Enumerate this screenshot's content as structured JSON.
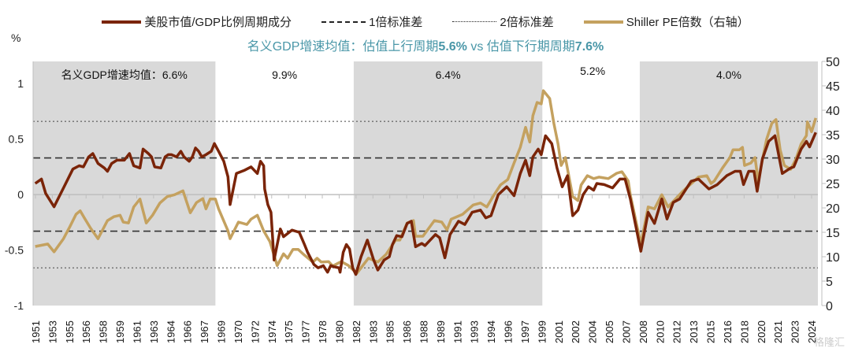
{
  "legend": {
    "series1": "美股市值/GDP比例周期成分",
    "sd1": "1倍标准差",
    "sd2": "2倍标准差",
    "series2": "Shiller PE倍数（右轴）"
  },
  "subtitle": {
    "part1": "名义GDP增速均值：估值上行周期",
    "val1": "5.6%",
    "part2": " vs 估值下行期周期",
    "val2": "7.6%"
  },
  "unit_label": "%",
  "watermark": "格隆汇",
  "colors": {
    "series1": "#7a2408",
    "series2": "#c4a15f",
    "shade": "#d9d9d9",
    "subtitle": "#4a97a8"
  },
  "chart_data": {
    "type": "line",
    "xlim": [
      1951,
      2025.9
    ],
    "ylim_left": [
      -1,
      1.2
    ],
    "ylim_right": [
      0,
      50
    ],
    "yticks_left": [
      "-1",
      "-0.5",
      "0",
      "0.5",
      "1"
    ],
    "yticks_right": [
      "0",
      "5",
      "10",
      "15",
      "20",
      "25",
      "30",
      "35",
      "40",
      "45",
      "50"
    ],
    "xtick_labels": [
      "1951",
      "1953",
      "1955",
      "1956",
      "1958",
      "1959",
      "1961",
      "1963",
      "1964",
      "1966",
      "1967",
      "1969",
      "1970",
      "1972",
      "1974",
      "1975",
      "1977",
      "1978",
      "1980",
      "1982",
      "1983",
      "1985",
      "1986",
      "1988",
      "1989",
      "1991",
      "1993",
      "1994",
      "1996",
      "1997",
      "1999",
      "2001",
      "2002",
      "2004",
      "2005",
      "2007",
      "2008",
      "2010",
      "2012",
      "2013",
      "2015",
      "2016",
      "2018",
      "2020",
      "2021",
      "2023",
      "2024"
    ],
    "reference_lines": [
      {
        "name": "1倍标准差",
        "values": [
          0.33,
          -0.33
        ],
        "style": "dashed"
      },
      {
        "name": "2倍标准差",
        "values": [
          0.66,
          -0.66
        ],
        "style": "dotted"
      }
    ],
    "shaded_periods": [
      {
        "start": 1951,
        "end": 1968.4,
        "label": "名义GDP增速均值：6.6%"
      },
      {
        "start": 1981.6,
        "end": 1999.6,
        "label": "6.4%"
      },
      {
        "start": 2008.9,
        "end": 2025.9,
        "label": "4.0%"
      }
    ],
    "unshaded_labels": [
      {
        "center": 1975.0,
        "label": "9.9%"
      },
      {
        "center": 2004.4,
        "label": "5.2%"
      }
    ],
    "series": [
      {
        "name": "美股市值/GDP比例周期成分",
        "axis": "left",
        "points": [
          [
            1951.2,
            0.1
          ],
          [
            1951.8,
            0.14
          ],
          [
            1952.2,
            0.01
          ],
          [
            1953.0,
            -0.11
          ],
          [
            1953.9,
            0.06
          ],
          [
            1954.8,
            0.23
          ],
          [
            1955.4,
            0.26
          ],
          [
            1955.8,
            0.25
          ],
          [
            1956.3,
            0.34
          ],
          [
            1956.7,
            0.37
          ],
          [
            1957.2,
            0.28
          ],
          [
            1957.8,
            0.24
          ],
          [
            1958.1,
            0.21
          ],
          [
            1958.5,
            0.28
          ],
          [
            1959.0,
            0.31
          ],
          [
            1959.7,
            0.31
          ],
          [
            1960.2,
            0.37
          ],
          [
            1960.6,
            0.26
          ],
          [
            1961.2,
            0.24
          ],
          [
            1961.5,
            0.41
          ],
          [
            1962.0,
            0.37
          ],
          [
            1962.3,
            0.34
          ],
          [
            1962.6,
            0.25
          ],
          [
            1963.2,
            0.24
          ],
          [
            1963.6,
            0.34
          ],
          [
            1963.9,
            0.36
          ],
          [
            1964.2,
            0.36
          ],
          [
            1964.7,
            0.34
          ],
          [
            1965.1,
            0.39
          ],
          [
            1965.4,
            0.34
          ],
          [
            1965.9,
            0.3
          ],
          [
            1966.2,
            0.34
          ],
          [
            1966.5,
            0.42
          ],
          [
            1966.8,
            0.39
          ],
          [
            1967.1,
            0.34
          ],
          [
            1967.5,
            0.36
          ],
          [
            1968.0,
            0.39
          ],
          [
            1968.3,
            0.46
          ],
          [
            1968.7,
            0.39
          ],
          [
            1969.2,
            0.3
          ],
          [
            1969.6,
            0.16
          ],
          [
            1969.8,
            -0.09
          ],
          [
            1970.4,
            0.19
          ],
          [
            1971.2,
            0.22
          ],
          [
            1971.8,
            0.25
          ],
          [
            1972.4,
            0.19
          ],
          [
            1972.7,
            0.3
          ],
          [
            1973.0,
            0.26
          ],
          [
            1973.1,
            0.05
          ],
          [
            1973.4,
            -0.09
          ],
          [
            1973.7,
            -0.16
          ],
          [
            1974.0,
            -0.59
          ],
          [
            1974.3,
            -0.45
          ],
          [
            1974.6,
            -0.31
          ],
          [
            1974.9,
            -0.38
          ],
          [
            1975.7,
            -0.32
          ],
          [
            1976.4,
            -0.34
          ],
          [
            1976.9,
            -0.45
          ],
          [
            1977.2,
            -0.52
          ],
          [
            1977.8,
            -0.63
          ],
          [
            1978.2,
            -0.66
          ],
          [
            1978.7,
            -0.64
          ],
          [
            1979.1,
            -0.7
          ],
          [
            1979.4,
            -0.64
          ],
          [
            1979.7,
            -0.65
          ],
          [
            1980.2,
            -0.66
          ],
          [
            1980.3,
            -0.7
          ],
          [
            1980.6,
            -0.52
          ],
          [
            1980.9,
            -0.45
          ],
          [
            1981.2,
            -0.49
          ],
          [
            1981.5,
            -0.66
          ],
          [
            1981.8,
            -0.72
          ],
          [
            1982.3,
            -0.56
          ],
          [
            1982.9,
            -0.41
          ],
          [
            1983.5,
            -0.59
          ],
          [
            1983.9,
            -0.68
          ],
          [
            1984.5,
            -0.59
          ],
          [
            1985.0,
            -0.56
          ],
          [
            1985.3,
            -0.45
          ],
          [
            1985.7,
            -0.37
          ],
          [
            1986.2,
            -0.38
          ],
          [
            1986.7,
            -0.26
          ],
          [
            1987.1,
            -0.24
          ],
          [
            1987.5,
            -0.47
          ],
          [
            1988.1,
            -0.44
          ],
          [
            1988.4,
            -0.46
          ],
          [
            1989.4,
            -0.36
          ],
          [
            1989.8,
            -0.39
          ],
          [
            1990.3,
            -0.57
          ],
          [
            1990.8,
            -0.36
          ],
          [
            1991.6,
            -0.24
          ],
          [
            1992.2,
            -0.27
          ],
          [
            1992.9,
            -0.16
          ],
          [
            1993.7,
            -0.14
          ],
          [
            1994.2,
            -0.21
          ],
          [
            1994.7,
            -0.19
          ],
          [
            1995.4,
            0.0
          ],
          [
            1996.2,
            0.07
          ],
          [
            1996.9,
            -0.01
          ],
          [
            1997.5,
            0.19
          ],
          [
            1998.0,
            0.31
          ],
          [
            1998.4,
            0.17
          ],
          [
            1998.7,
            0.34
          ],
          [
            1999.2,
            0.41
          ],
          [
            1999.5,
            0.36
          ],
          [
            1999.9,
            0.53
          ],
          [
            2000.5,
            0.46
          ],
          [
            2001.0,
            0.24
          ],
          [
            2001.5,
            0.07
          ],
          [
            2002.0,
            0.17
          ],
          [
            2002.5,
            -0.19
          ],
          [
            2003.0,
            -0.14
          ],
          [
            2003.5,
            0.0
          ],
          [
            2004.0,
            0.07
          ],
          [
            2004.5,
            0.04
          ],
          [
            2004.8,
            0.1
          ],
          [
            2005.5,
            0.09
          ],
          [
            2006.3,
            0.06
          ],
          [
            2007.0,
            0.14
          ],
          [
            2007.5,
            0.14
          ],
          [
            2008.0,
            -0.04
          ],
          [
            2009.0,
            -0.51
          ],
          [
            2009.7,
            -0.16
          ],
          [
            2010.3,
            -0.26
          ],
          [
            2011.0,
            -0.04
          ],
          [
            2011.5,
            -0.22
          ],
          [
            2012.1,
            -0.07
          ],
          [
            2012.7,
            -0.04
          ],
          [
            2013.8,
            0.12
          ],
          [
            2014.5,
            0.14
          ],
          [
            2015.5,
            0.05
          ],
          [
            2016.3,
            0.09
          ],
          [
            2017.2,
            0.17
          ],
          [
            2018.0,
            0.21
          ],
          [
            2018.5,
            0.21
          ],
          [
            2018.8,
            0.09
          ],
          [
            2019.3,
            0.21
          ],
          [
            2019.8,
            0.21
          ],
          [
            2020.1,
            0.03
          ],
          [
            2020.6,
            0.32
          ],
          [
            2021.2,
            0.48
          ],
          [
            2021.8,
            0.53
          ],
          [
            2022.5,
            0.19
          ],
          [
            2023.3,
            0.24
          ],
          [
            2023.6,
            0.25
          ],
          [
            2024.3,
            0.41
          ],
          [
            2024.8,
            0.48
          ],
          [
            2025.1,
            0.43
          ],
          [
            2025.7,
            0.56
          ]
        ]
      },
      {
        "name": "Shiller PE倍数（右轴）",
        "axis": "right",
        "points": [
          [
            1951.2,
            12.1
          ],
          [
            1952.4,
            12.6
          ],
          [
            1953.0,
            11.0
          ],
          [
            1953.9,
            13.7
          ],
          [
            1954.5,
            16.1
          ],
          [
            1955.1,
            18.7
          ],
          [
            1955.5,
            19.4
          ],
          [
            1955.9,
            17.9
          ],
          [
            1956.5,
            15.8
          ],
          [
            1957.2,
            13.7
          ],
          [
            1958.1,
            17.4
          ],
          [
            1958.7,
            18.2
          ],
          [
            1959.3,
            18.5
          ],
          [
            1959.6,
            17.1
          ],
          [
            1960.1,
            16.9
          ],
          [
            1960.6,
            20.2
          ],
          [
            1961.2,
            21.8
          ],
          [
            1961.8,
            16.9
          ],
          [
            1962.4,
            18.5
          ],
          [
            1963.1,
            21.0
          ],
          [
            1963.8,
            22.3
          ],
          [
            1964.5,
            22.7
          ],
          [
            1965.3,
            23.5
          ],
          [
            1966.0,
            19.0
          ],
          [
            1966.6,
            21.1
          ],
          [
            1967.2,
            21.9
          ],
          [
            1967.5,
            19.8
          ],
          [
            1967.9,
            21.8
          ],
          [
            1968.4,
            21.8
          ],
          [
            1968.7,
            19.8
          ],
          [
            1969.6,
            15.3
          ],
          [
            1969.8,
            13.7
          ],
          [
            1970.6,
            17.1
          ],
          [
            1971.4,
            16.6
          ],
          [
            1971.8,
            17.7
          ],
          [
            1972.4,
            18.5
          ],
          [
            1973.0,
            15.3
          ],
          [
            1973.6,
            13.1
          ],
          [
            1974.3,
            8.2
          ],
          [
            1974.9,
            10.6
          ],
          [
            1975.3,
            9.7
          ],
          [
            1975.8,
            11.5
          ],
          [
            1976.3,
            11.5
          ],
          [
            1976.8,
            10.5
          ],
          [
            1977.7,
            8.9
          ],
          [
            1978.1,
            9.7
          ],
          [
            1978.5,
            8.9
          ],
          [
            1979.2,
            9.0
          ],
          [
            1979.6,
            8.1
          ],
          [
            1980.4,
            9.0
          ],
          [
            1981.1,
            8.2
          ],
          [
            1981.9,
            6.6
          ],
          [
            1983.0,
            9.7
          ],
          [
            1983.9,
            8.9
          ],
          [
            1984.7,
            10.5
          ],
          [
            1985.6,
            13.4
          ],
          [
            1986.0,
            13.4
          ],
          [
            1986.7,
            16.9
          ],
          [
            1987.3,
            17.4
          ],
          [
            1987.5,
            14.2
          ],
          [
            1988.2,
            14.2
          ],
          [
            1989.3,
            17.4
          ],
          [
            1990.0,
            17.1
          ],
          [
            1990.5,
            15.5
          ],
          [
            1990.9,
            17.7
          ],
          [
            1992.0,
            18.7
          ],
          [
            1993.0,
            20.6
          ],
          [
            1993.7,
            21.0
          ],
          [
            1994.3,
            20.2
          ],
          [
            1995.0,
            22.7
          ],
          [
            1995.6,
            24.7
          ],
          [
            1996.3,
            25.8
          ],
          [
            1996.9,
            29.2
          ],
          [
            1997.5,
            32.4
          ],
          [
            1998.0,
            36.5
          ],
          [
            1998.4,
            33.5
          ],
          [
            1998.7,
            38.9
          ],
          [
            1999.1,
            41.6
          ],
          [
            1999.5,
            41.3
          ],
          [
            1999.7,
            44.0
          ],
          [
            2000.3,
            42.4
          ],
          [
            2000.7,
            37.3
          ],
          [
            2001.1,
            33.1
          ],
          [
            2001.4,
            28.7
          ],
          [
            2001.8,
            30.3
          ],
          [
            2002.5,
            22.3
          ],
          [
            2003.0,
            21.5
          ],
          [
            2003.3,
            24.7
          ],
          [
            2003.9,
            26.6
          ],
          [
            2004.5,
            26.0
          ],
          [
            2005.0,
            26.3
          ],
          [
            2005.9,
            26.0
          ],
          [
            2006.7,
            27.1
          ],
          [
            2007.2,
            27.4
          ],
          [
            2007.8,
            25.5
          ],
          [
            2008.0,
            22.6
          ],
          [
            2009.0,
            12.6
          ],
          [
            2009.7,
            20.2
          ],
          [
            2010.3,
            19.8
          ],
          [
            2011.0,
            22.7
          ],
          [
            2011.6,
            20.2
          ],
          [
            2012.3,
            21.8
          ],
          [
            2013.0,
            23.4
          ],
          [
            2014.5,
            26.3
          ],
          [
            2015.3,
            26.6
          ],
          [
            2015.7,
            25.0
          ],
          [
            2016.0,
            25.5
          ],
          [
            2016.8,
            28.2
          ],
          [
            2017.5,
            30.3
          ],
          [
            2017.8,
            31.9
          ],
          [
            2018.4,
            31.9
          ],
          [
            2018.7,
            32.4
          ],
          [
            2018.9,
            28.7
          ],
          [
            2019.5,
            29.2
          ],
          [
            2019.9,
            30.3
          ],
          [
            2020.2,
            25.5
          ],
          [
            2020.6,
            29.8
          ],
          [
            2021.0,
            34.0
          ],
          [
            2021.5,
            37.3
          ],
          [
            2021.9,
            38.1
          ],
          [
            2022.3,
            31.9
          ],
          [
            2022.7,
            28.7
          ],
          [
            2023.3,
            27.9
          ],
          [
            2023.8,
            30.0
          ],
          [
            2024.3,
            33.1
          ],
          [
            2024.8,
            34.8
          ],
          [
            2024.9,
            37.6
          ],
          [
            2025.3,
            35.6
          ],
          [
            2025.7,
            38.4
          ]
        ]
      }
    ]
  }
}
